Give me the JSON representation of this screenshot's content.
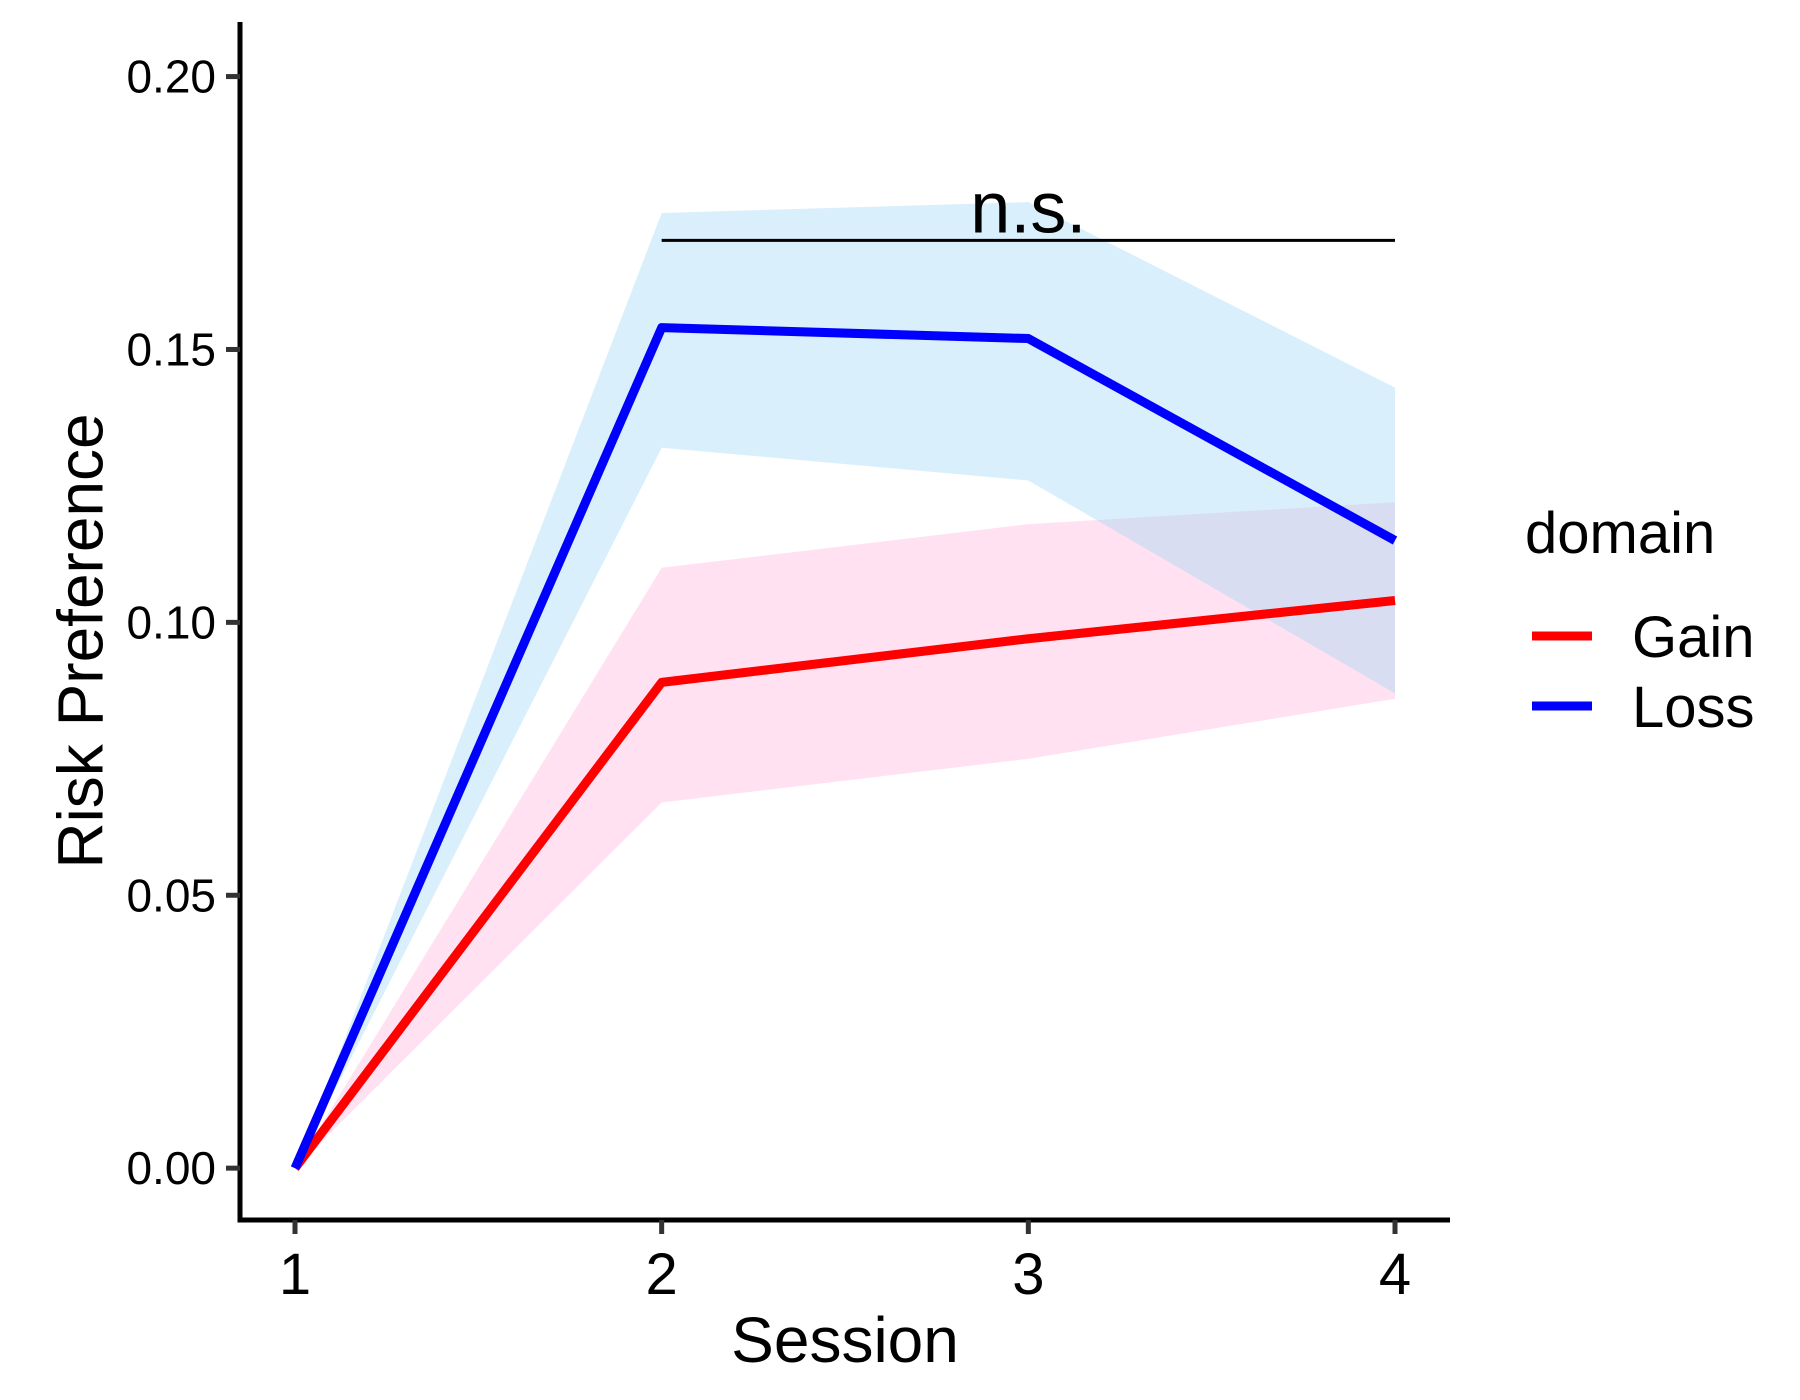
{
  "chart_data": {
    "type": "line",
    "xlabel": "Session",
    "ylabel": "Risk Preference",
    "x": [
      1,
      2,
      3,
      4
    ],
    "x_tick_labels": [
      "1",
      "2",
      "3",
      "4"
    ],
    "xlim": [
      0.85,
      4.15
    ],
    "ylim": [
      -0.0095,
      0.21
    ],
    "y_ticks": [
      0.0,
      0.05,
      0.1,
      0.15,
      0.2
    ],
    "y_tick_labels": [
      "0.00",
      "0.05",
      "0.10",
      "0.15",
      "0.20"
    ],
    "grid": false,
    "legend": {
      "title": "domain",
      "position": "right"
    },
    "series": [
      {
        "name": "Gain",
        "color": "#ff0000",
        "band_color": "#ffb3dc",
        "values": [
          0.0,
          0.089,
          0.097,
          0.104
        ],
        "lower": [
          0.0,
          0.067,
          0.075,
          0.086
        ],
        "upper": [
          0.0,
          0.11,
          0.118,
          0.122
        ]
      },
      {
        "name": "Loss",
        "color": "#0000ff",
        "band_color": "#9fd6f5",
        "values": [
          0.0,
          0.154,
          0.152,
          0.115
        ],
        "lower": [
          0.0,
          0.132,
          0.126,
          0.087
        ],
        "upper": [
          0.0,
          0.175,
          0.177,
          0.143
        ]
      }
    ],
    "annotations": [
      {
        "text": "n.s.",
        "x_start": 2,
        "x_end": 4,
        "y": 0.17,
        "text_x": 3
      }
    ]
  }
}
